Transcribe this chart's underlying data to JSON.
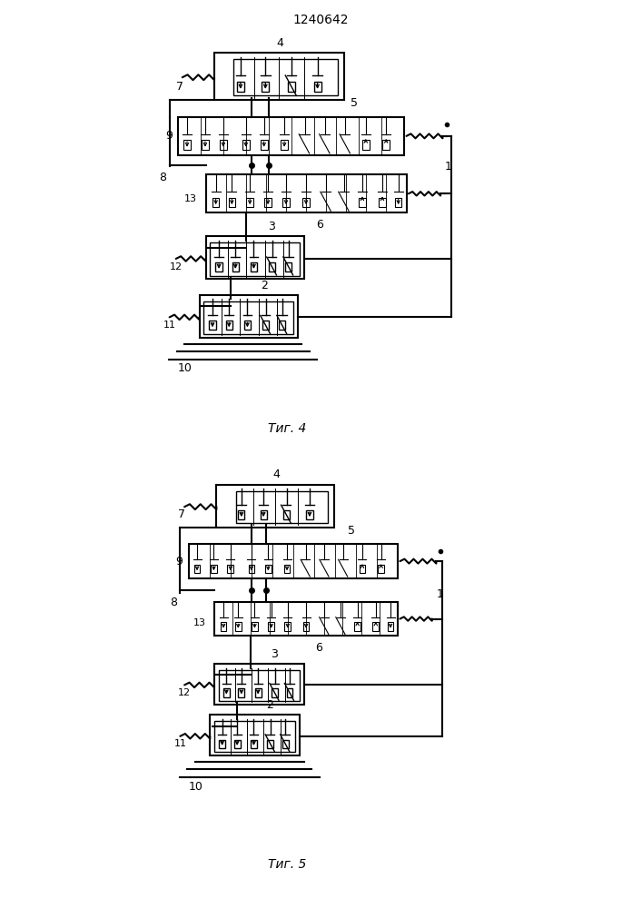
{
  "title": "1240642",
  "fig4_label": "Τиг. 4",
  "fig5_label": "Τиг. 5",
  "bg_color": "#ffffff",
  "line_color": "#000000"
}
